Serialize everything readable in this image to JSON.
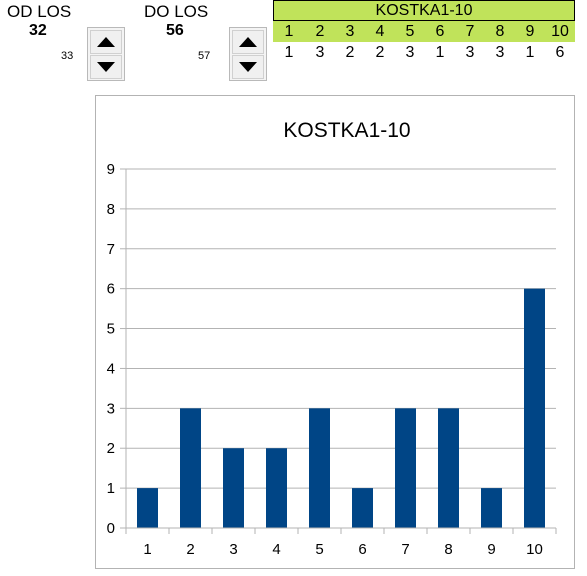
{
  "controls": {
    "from": {
      "label": "OD LOS",
      "value": "32",
      "next": "33"
    },
    "to": {
      "label": "DO LOS",
      "value": "56",
      "next": "57"
    }
  },
  "table": {
    "title": "KOSTKA1-10",
    "faces": [
      "1",
      "2",
      "3",
      "4",
      "5",
      "6",
      "7",
      "8",
      "9",
      "10"
    ],
    "counts": [
      "1",
      "3",
      "2",
      "2",
      "3",
      "1",
      "3",
      "3",
      "1",
      "6"
    ]
  },
  "colors": {
    "accent": "#c0e35a",
    "bar": "#004586",
    "grid": "#b3b3b3"
  },
  "chart_data": {
    "type": "bar",
    "title": "KOSTKA1-10",
    "categories": [
      "1",
      "2",
      "3",
      "4",
      "5",
      "6",
      "7",
      "8",
      "9",
      "10"
    ],
    "values": [
      1,
      3,
      2,
      2,
      3,
      1,
      3,
      3,
      1,
      6
    ],
    "ylim": [
      0,
      9
    ],
    "yticks": [
      0,
      1,
      2,
      3,
      4,
      5,
      6,
      7,
      8,
      9
    ],
    "grid": true,
    "legend": "none"
  }
}
